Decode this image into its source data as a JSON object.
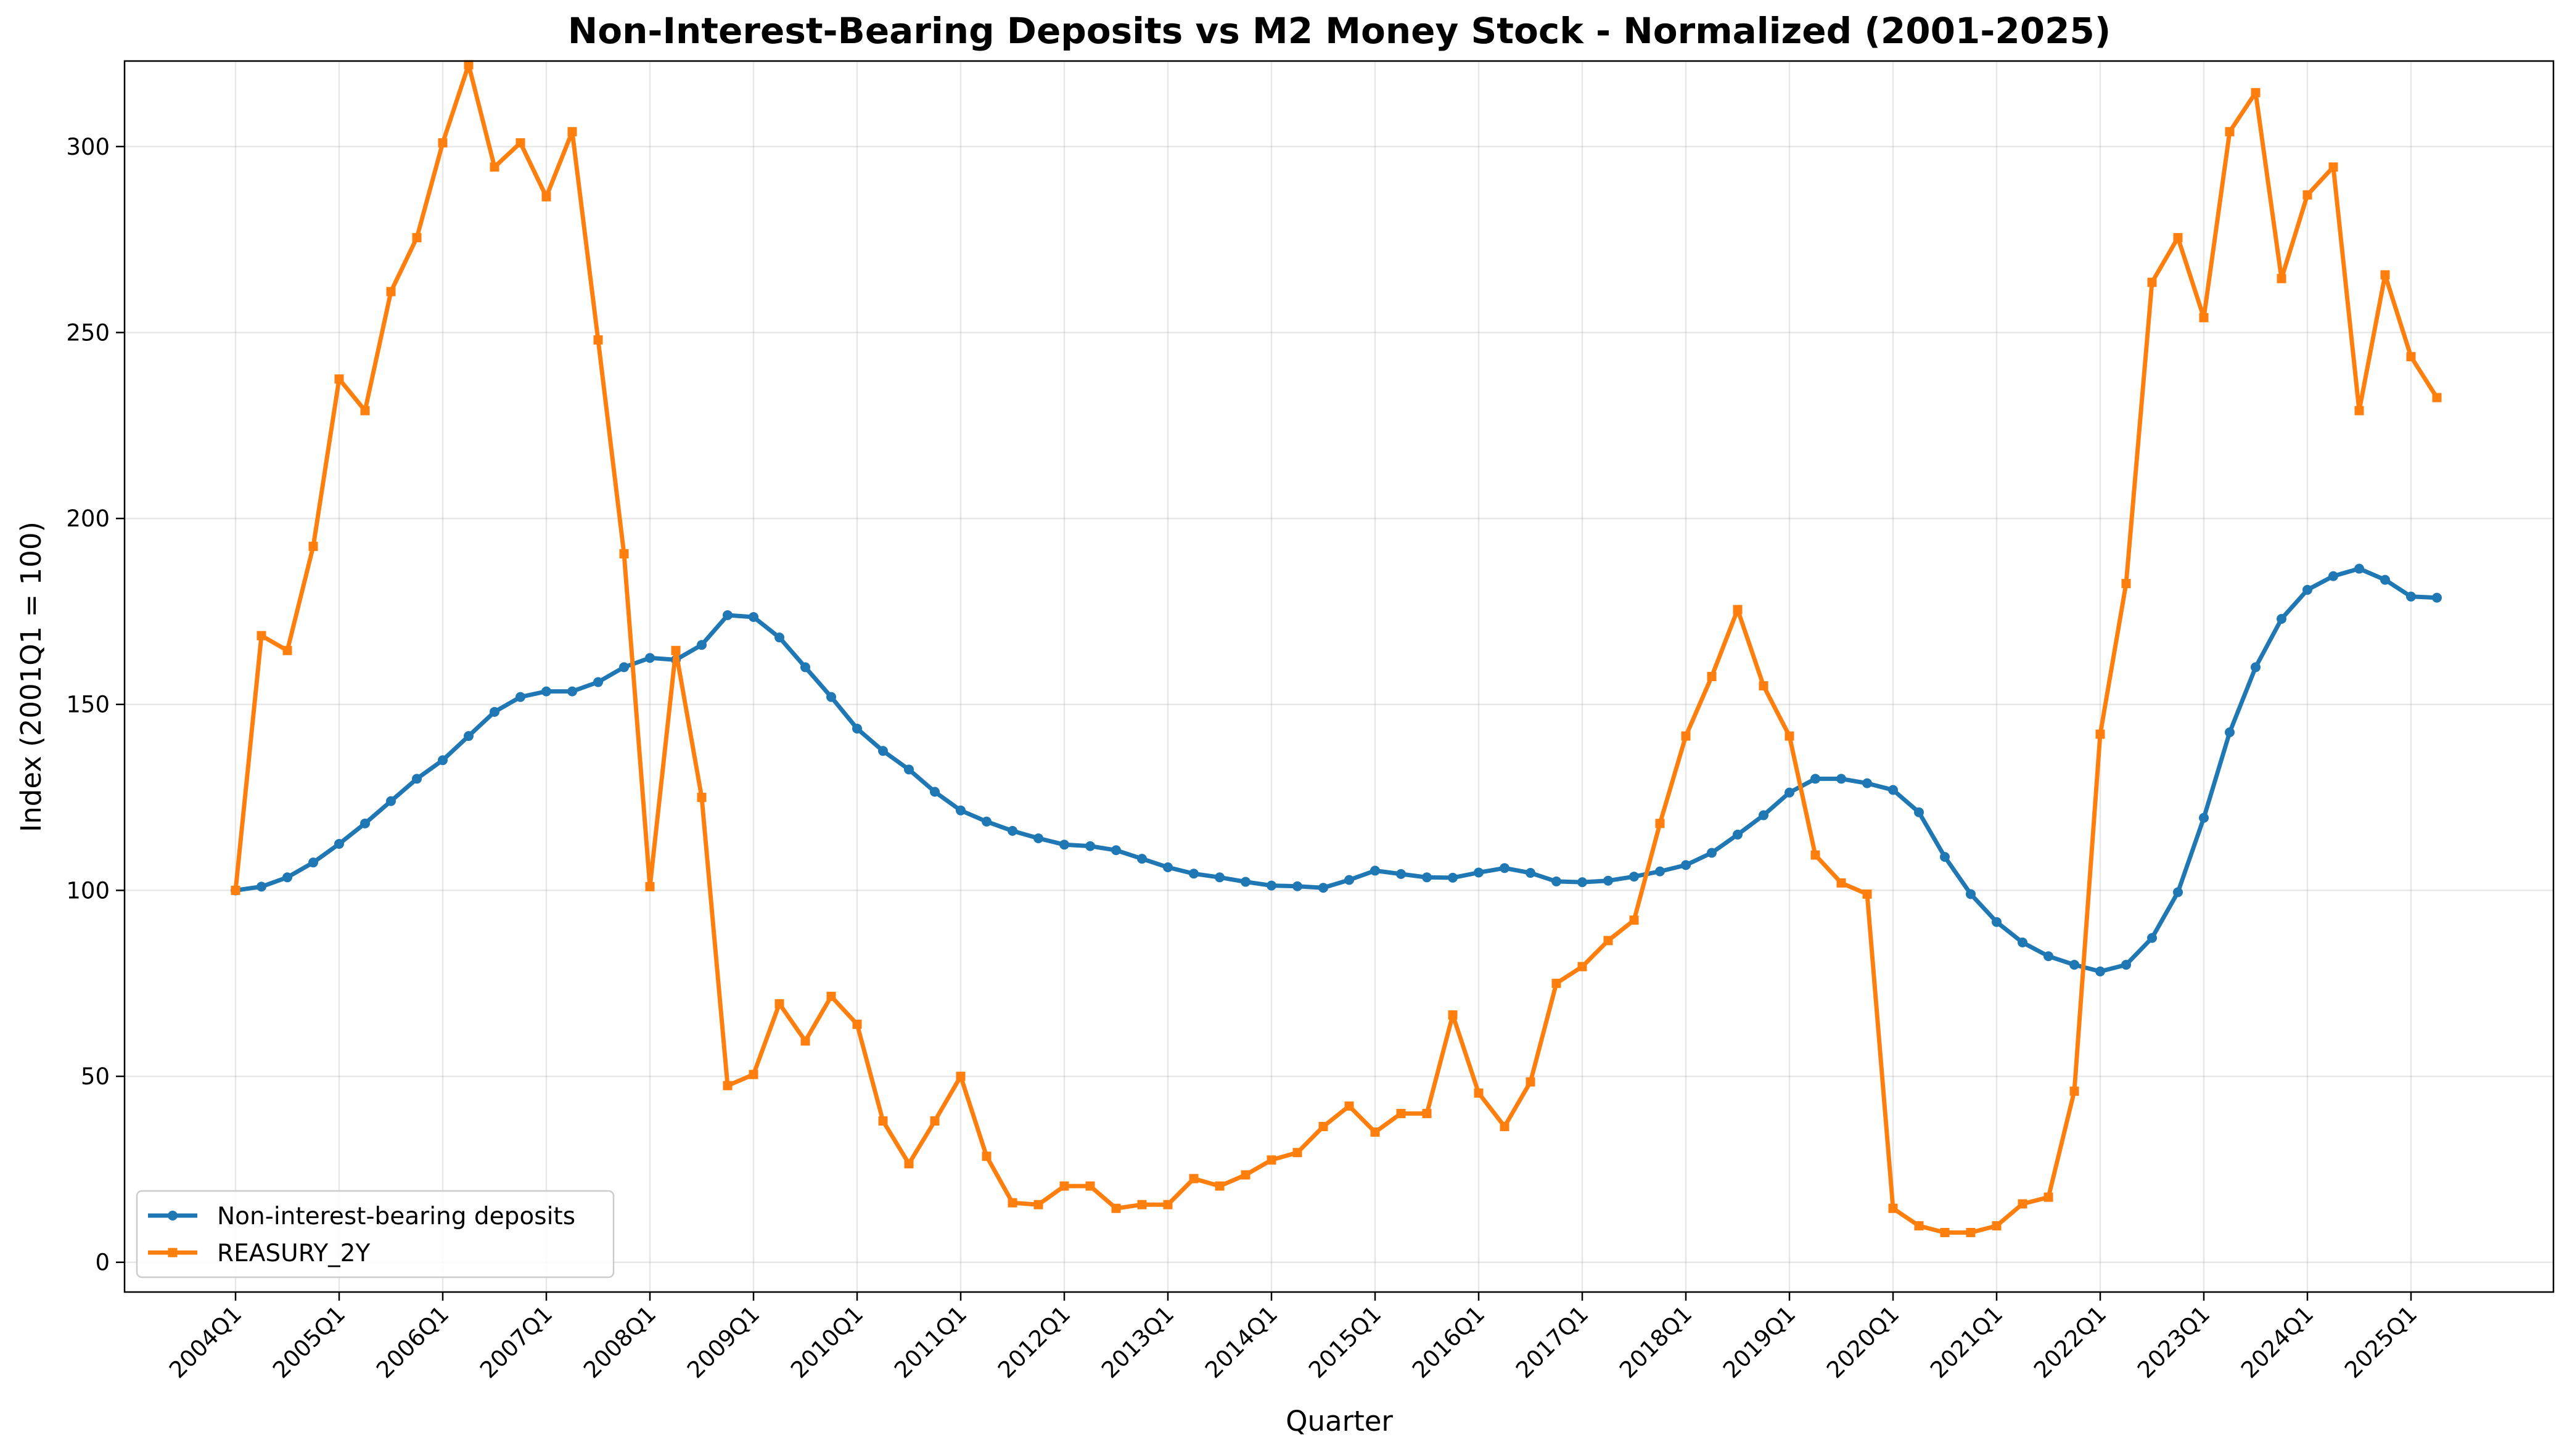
{
  "chart_data": {
    "type": "line",
    "title": "Non-Interest-Bearing Deposits vs M2 Money Stock - Normalized (2001-2025)",
    "xlabel": "Quarter",
    "ylabel": "Index (2001Q1 = 100)",
    "ylim": [
      -8,
      323
    ],
    "yticks": [
      0,
      50,
      100,
      150,
      200,
      250,
      300
    ],
    "xtick_labels": [
      "2004Q1",
      "2005Q1",
      "2006Q1",
      "2007Q1",
      "2008Q1",
      "2009Q1",
      "2010Q1",
      "2011Q1",
      "2012Q1",
      "2013Q1",
      "2014Q1",
      "2015Q1",
      "2016Q1",
      "2017Q1",
      "2018Q1",
      "2019Q1",
      "2020Q1",
      "2021Q1",
      "2022Q1",
      "2023Q1",
      "2024Q1",
      "2025Q1"
    ],
    "grid": true,
    "legend_position": "lower-left",
    "start_quarter": "2004Q1",
    "series": [
      {
        "name": "Non-interest-bearing deposits",
        "color": "#1f77b4",
        "marker": "circle",
        "values": [
          100,
          101,
          103.5,
          107.5,
          112.5,
          118,
          124,
          130,
          135,
          141.5,
          148,
          152,
          153.5,
          153.5,
          156,
          160,
          162.5,
          162,
          166,
          174,
          173.5,
          168,
          160,
          152,
          143.5,
          137.5,
          132.5,
          126.5,
          121.5,
          118.5,
          116,
          114,
          112.3,
          111.9,
          110.8,
          108.5,
          106.2,
          104.5,
          103.5,
          102.3,
          101.3,
          101.1,
          100.7,
          102.8,
          105.3,
          104.4,
          103.5,
          103.4,
          104.8,
          106,
          104.7,
          102.4,
          102.2,
          102.6,
          103.7,
          105.1,
          106.8,
          110.1,
          115,
          120.2,
          126.3,
          130,
          130,
          128.8,
          127,
          121,
          109,
          99,
          91.5,
          86,
          82.3,
          80,
          78.2,
          80,
          87.2,
          99.5,
          119.5,
          142.5,
          160,
          173,
          180.8,
          184.5,
          186.5,
          183.5,
          179,
          178.7
        ]
      },
      {
        "name": "REASURY_2Y",
        "color": "#ff7f0e",
        "marker": "square",
        "values": [
          100,
          168.5,
          164.5,
          192.5,
          237.5,
          229,
          261,
          275.5,
          301,
          322,
          294.5,
          301,
          286.5,
          304,
          248,
          190.5,
          101,
          164.5,
          125,
          47.5,
          50.5,
          69.5,
          59.5,
          71.5,
          64,
          38,
          26.5,
          38,
          50,
          28.5,
          16,
          15.5,
          20.5,
          20.5,
          14.5,
          15.5,
          15.5,
          22.5,
          20.5,
          23.5,
          27.5,
          29.5,
          36.5,
          42,
          35,
          40,
          40,
          66.5,
          45.5,
          36.5,
          48.5,
          75,
          79.5,
          86.5,
          92,
          118,
          141.5,
          157.5,
          175.5,
          155,
          141.5,
          109.5,
          102,
          99,
          14.5,
          9.8,
          8,
          8,
          9.8,
          15.7,
          17.5,
          46,
          142,
          182.5,
          263.5,
          275.5,
          254,
          304,
          314.5,
          264.5,
          287,
          294.5,
          229,
          265.5,
          243.5,
          232.5
        ]
      }
    ]
  }
}
